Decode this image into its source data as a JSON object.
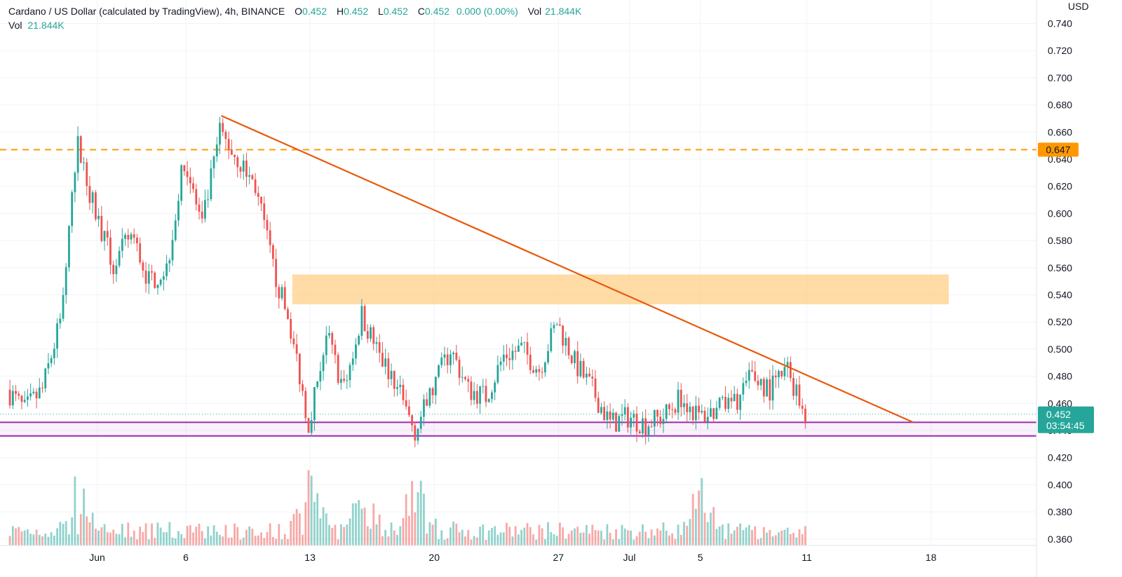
{
  "legend": {
    "symbol": "Cardano / US Dollar (calculated by TradingView), 4h, BINANCE",
    "o_label": "O",
    "o_value": "0.452",
    "h_label": "H",
    "h_value": "0.452",
    "l_label": "L",
    "l_value": "0.452",
    "c_label": "C",
    "c_value": "0.452",
    "change": "0.000 (0.00%)",
    "vol_label": "Vol",
    "vol_value": "21.844K",
    "vol2_label": "Vol",
    "vol2_value": "21.844K"
  },
  "price_axis": {
    "currency": "USD",
    "ticks": [
      "0.740",
      "0.720",
      "0.700",
      "0.680",
      "0.660",
      "0.640",
      "0.620",
      "0.600",
      "0.580",
      "0.560",
      "0.540",
      "0.520",
      "0.500",
      "0.480",
      "0.460",
      "0.440",
      "0.420",
      "0.400",
      "0.380",
      "0.360"
    ],
    "last_price_tag": "0.452",
    "countdown_tag": "03:54:45",
    "level_tag": "0.647"
  },
  "time_axis": {
    "ticks": [
      "Jun",
      "6",
      "13",
      "20",
      "27",
      "Jul",
      "5",
      "11",
      "18"
    ]
  },
  "colors": {
    "up": "#26a69a",
    "down": "#ef5350",
    "trendline": "#e8590c",
    "level_line": "#ff9800",
    "zone": "#ffcc80",
    "support": "#9c27b0"
  },
  "chart_data": {
    "type": "candlestick",
    "symbol": "ADA/USD",
    "interval": "4h",
    "ylim": [
      0.355,
      0.745
    ],
    "x_range": [
      "May 27",
      "Jul 20"
    ],
    "last_close": 0.452,
    "horizontal_level": 0.647,
    "resistance_zone": {
      "from_date": "Jun 12",
      "to_date": "Jul 19",
      "low": 0.533,
      "high": 0.555
    },
    "support_band": {
      "low": 0.436,
      "high": 0.446
    },
    "trendline": [
      {
        "date": "Jun 8",
        "price": 0.672
      },
      {
        "date": "Jul 17",
        "price": 0.446
      }
    ],
    "path": [
      [
        "May 27",
        0.47
      ],
      [
        "May 28",
        0.455
      ],
      [
        "May 29",
        0.47
      ],
      [
        "May 30",
        0.52
      ],
      [
        "May 31",
        0.65
      ],
      [
        "Jun 1",
        0.6
      ],
      [
        "Jun 2",
        0.56
      ],
      [
        "Jun 3",
        0.585
      ],
      [
        "Jun 4",
        0.55
      ],
      [
        "Jun 5",
        0.56
      ],
      [
        "Jun 6",
        0.64
      ],
      [
        "Jun 7",
        0.59
      ],
      [
        "Jun 8",
        0.66
      ],
      [
        "Jun 9",
        0.64
      ],
      [
        "Jun 10",
        0.62
      ],
      [
        "Jun 11",
        0.56
      ],
      [
        "Jun 12",
        0.515
      ],
      [
        "Jun 13",
        0.445
      ],
      [
        "Jun 14",
        0.51
      ],
      [
        "Jun 15",
        0.47
      ],
      [
        "Jun 16",
        0.525
      ],
      [
        "Jun 17",
        0.495
      ],
      [
        "Jun 18",
        0.47
      ],
      [
        "Jun 19",
        0.44
      ],
      [
        "Jun 20",
        0.47
      ],
      [
        "Jun 21",
        0.5
      ],
      [
        "Jun 22",
        0.47
      ],
      [
        "Jun 23",
        0.465
      ],
      [
        "Jun 24",
        0.495
      ],
      [
        "Jun 25",
        0.5
      ],
      [
        "Jun 26",
        0.485
      ],
      [
        "Jun 27",
        0.52
      ],
      [
        "Jun 28",
        0.49
      ],
      [
        "Jun 29",
        0.47
      ],
      [
        "Jun 30",
        0.445
      ],
      [
        "Jul 1",
        0.45
      ],
      [
        "Jul 2",
        0.445
      ],
      [
        "Jul 3",
        0.45
      ],
      [
        "Jul 4",
        0.465
      ],
      [
        "Jul 5",
        0.45
      ],
      [
        "Jul 6",
        0.455
      ],
      [
        "Jul 7",
        0.46
      ],
      [
        "Jul 8",
        0.48
      ],
      [
        "Jul 9",
        0.47
      ],
      [
        "Jul 10",
        0.485
      ],
      [
        "Jul 11",
        0.452
      ]
    ],
    "volume_peak_dates": [
      "May 31",
      "Jun 13",
      "Jun 16",
      "Jun 19",
      "Jul 5"
    ]
  }
}
